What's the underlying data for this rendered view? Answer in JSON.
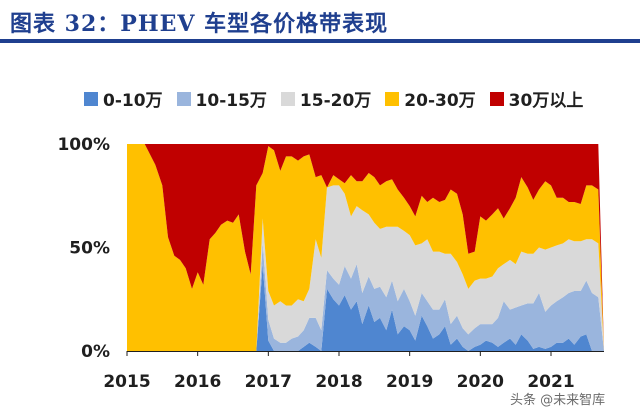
{
  "title": "图表 32：PHEV 车型各价格带表现",
  "watermark": "头条 @未来智库",
  "colors": {
    "title": "#1f3f8f"
  },
  "chart_data": {
    "type": "area",
    "stacked_percent": true,
    "title": "图表 32：PHEV 车型各价格带表现",
    "xlabel": "",
    "ylabel": "",
    "xlim": [
      2015.0,
      2021.75
    ],
    "ylim": [
      0,
      100
    ],
    "legend_position": "top",
    "x_ticks": [
      "2015",
      "2016",
      "2017",
      "2018",
      "2019",
      "2020",
      "2021"
    ],
    "y_ticks": [
      "0%",
      "50%",
      "100%"
    ],
    "x": [
      2015.0,
      2015.25,
      2015.4,
      2015.5,
      2015.58,
      2015.67,
      2015.75,
      2015.83,
      2015.92,
      2016.0,
      2016.08,
      2016.17,
      2016.25,
      2016.33,
      2016.42,
      2016.5,
      2016.58,
      2016.67,
      2016.75,
      2016.83,
      2016.92,
      2017.0,
      2017.08,
      2017.17,
      2017.25,
      2017.33,
      2017.42,
      2017.5,
      2017.58,
      2017.67,
      2017.75,
      2017.83,
      2017.92,
      2018.0,
      2018.08,
      2018.17,
      2018.25,
      2018.33,
      2018.42,
      2018.5,
      2018.58,
      2018.67,
      2018.75,
      2018.83,
      2018.92,
      2019.0,
      2019.08,
      2019.17,
      2019.25,
      2019.33,
      2019.42,
      2019.5,
      2019.58,
      2019.67,
      2019.75,
      2019.83,
      2019.92,
      2020.0,
      2020.08,
      2020.17,
      2020.25,
      2020.33,
      2020.42,
      2020.5,
      2020.58,
      2020.67,
      2020.75,
      2020.83,
      2020.92,
      2021.0,
      2021.08,
      2021.17,
      2021.25,
      2021.33,
      2021.42,
      2021.5,
      2021.58,
      2021.67,
      2021.75
    ],
    "series": [
      {
        "name": "0-10万",
        "color": "#4f86d0",
        "values": [
          0,
          0,
          0,
          0,
          0,
          0,
          0,
          0,
          0,
          0,
          0,
          0,
          0,
          0,
          0,
          0,
          0,
          0,
          0,
          0,
          42,
          5,
          0,
          0,
          0,
          0,
          0,
          2,
          4,
          2,
          0,
          30,
          25,
          22,
          27,
          20,
          24,
          13,
          22,
          14,
          16,
          10,
          20,
          8,
          12,
          10,
          5,
          17,
          12,
          6,
          8,
          12,
          3,
          6,
          2,
          0,
          2,
          3,
          5,
          4,
          2,
          4,
          6,
          3,
          8,
          5,
          1,
          2,
          1,
          2,
          4,
          4,
          6,
          3,
          7,
          8,
          0,
          0,
          0
        ]
      },
      {
        "name": "10-15万",
        "color": "#9ab5dd",
        "values": [
          0,
          0,
          0,
          0,
          0,
          0,
          0,
          0,
          0,
          0,
          0,
          0,
          0,
          0,
          0,
          0,
          0,
          0,
          0,
          0,
          10,
          10,
          6,
          4,
          4,
          6,
          7,
          8,
          12,
          14,
          10,
          9,
          10,
          10,
          14,
          15,
          18,
          15,
          14,
          16,
          15,
          16,
          14,
          16,
          18,
          14,
          12,
          11,
          12,
          14,
          12,
          13,
          10,
          11,
          9,
          8,
          9,
          10,
          8,
          9,
          14,
          20,
          14,
          18,
          14,
          18,
          22,
          26,
          18,
          20,
          20,
          22,
          22,
          26,
          22,
          26,
          28,
          26,
          0
        ]
      },
      {
        "name": "15-20万",
        "color": "#d9d9d9",
        "values": [
          0,
          0,
          0,
          0,
          0,
          0,
          0,
          0,
          0,
          0,
          0,
          0,
          0,
          0,
          0,
          0,
          0,
          0,
          0,
          0,
          12,
          14,
          16,
          20,
          18,
          16,
          18,
          14,
          14,
          38,
          35,
          40,
          45,
          48,
          35,
          30,
          28,
          40,
          30,
          32,
          28,
          34,
          26,
          36,
          28,
          32,
          34,
          24,
          30,
          28,
          28,
          22,
          34,
          26,
          26,
          22,
          23,
          22,
          22,
          23,
          24,
          18,
          24,
          21,
          26,
          24,
          24,
          22,
          30,
          28,
          27,
          26,
          26,
          24,
          24,
          20,
          26,
          26,
          0
        ]
      },
      {
        "name": "20-30万",
        "color": "#ffc000",
        "values": [
          100,
          100,
          90,
          80,
          55,
          46,
          44,
          40,
          30,
          38,
          32,
          54,
          57,
          61,
          63,
          62,
          66,
          48,
          37,
          80,
          22,
          70,
          75,
          63,
          72,
          72,
          67,
          70,
          65,
          30,
          40,
          0,
          5,
          3,
          5,
          20,
          12,
          14,
          20,
          22,
          21,
          22,
          23,
          18,
          16,
          14,
          14,
          23,
          18,
          26,
          24,
          26,
          31,
          33,
          29,
          17,
          14,
          30,
          28,
          30,
          29,
          22,
          25,
          32,
          36,
          32,
          26,
          28,
          33,
          30,
          23,
          22,
          18,
          19,
          18,
          26,
          26,
          26,
          0
        ]
      },
      {
        "name": "30万以上",
        "color": "#c00000",
        "values": [
          0,
          0,
          10,
          20,
          45,
          54,
          56,
          60,
          70,
          62,
          68,
          46,
          43,
          39,
          37,
          38,
          34,
          52,
          63,
          20,
          14,
          1,
          3,
          13,
          6,
          6,
          8,
          6,
          5,
          16,
          15,
          21,
          15,
          17,
          19,
          15,
          18,
          18,
          14,
          16,
          20,
          18,
          17,
          22,
          26,
          30,
          35,
          25,
          28,
          26,
          28,
          27,
          22,
          24,
          34,
          53,
          52,
          35,
          37,
          34,
          31,
          36,
          31,
          26,
          16,
          21,
          27,
          22,
          18,
          20,
          26,
          26,
          28,
          28,
          29,
          20,
          20,
          22,
          0
        ]
      }
    ]
  }
}
